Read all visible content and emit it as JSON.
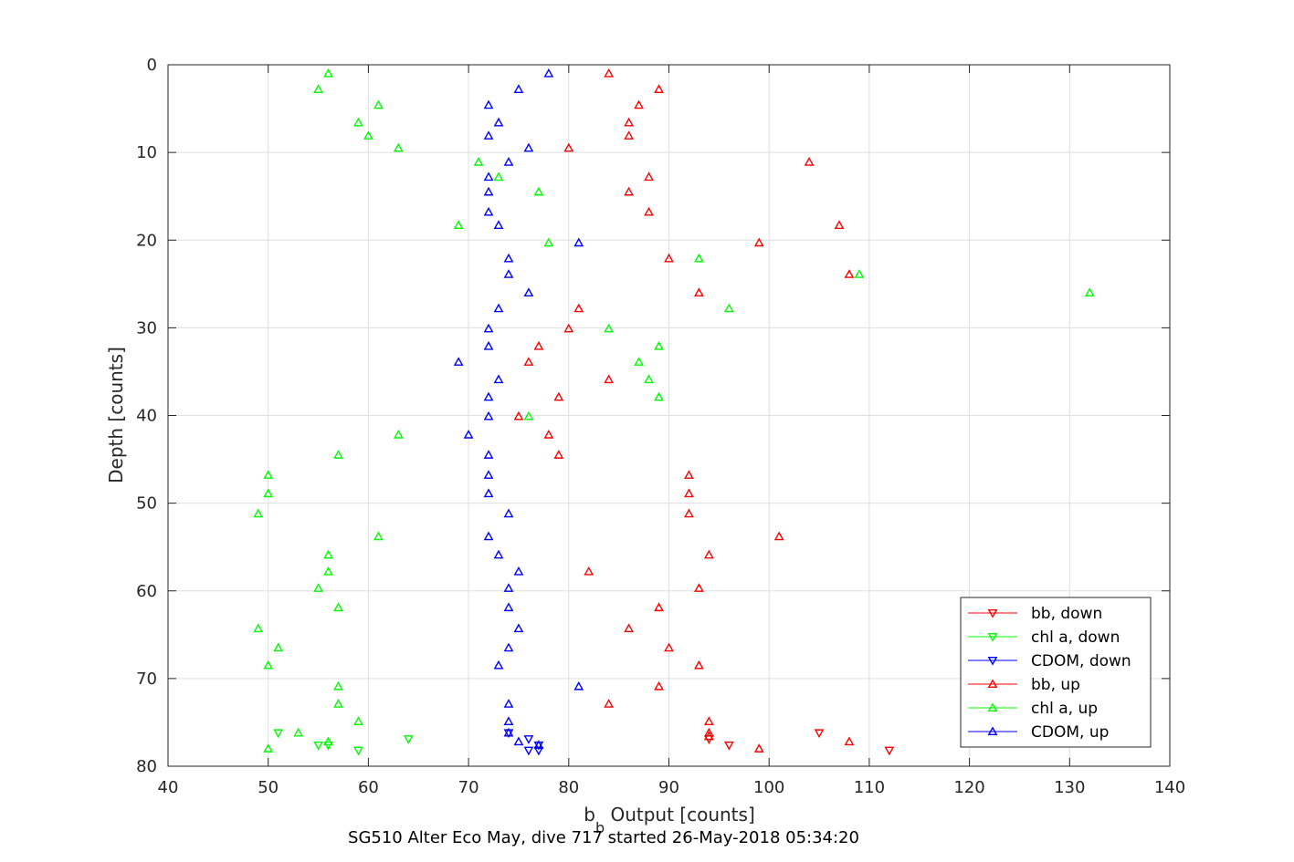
{
  "chart_data": {
    "type": "scatter",
    "xlabel_main": "b",
    "xlabel_sub": "b",
    "xlabel_rest": " Output [counts]",
    "ylabel": "Depth [counts]",
    "caption": "SG510 Alter Eco May, dive 717 started 26-May-2018 05:34:20",
    "xlim": [
      40,
      140
    ],
    "ylim": [
      0,
      80
    ],
    "y_reversed": true,
    "grid": true,
    "legend_position": "bottom-right",
    "xticks": [
      40,
      50,
      60,
      70,
      80,
      90,
      100,
      110,
      120,
      130,
      140
    ],
    "yticks": [
      0,
      10,
      20,
      30,
      40,
      50,
      60,
      70,
      80
    ],
    "series": [
      {
        "name": "bb, down",
        "color": "#ff0000",
        "marker": "triangle-down",
        "points": [
          [
            94,
            76.9
          ],
          [
            96,
            77.6
          ],
          [
            105,
            76.2
          ],
          [
            112,
            78.2
          ]
        ]
      },
      {
        "name": "chl a, down",
        "color": "#00ff00",
        "marker": "triangle-down",
        "points": [
          [
            51,
            76.2
          ],
          [
            56,
            77.6
          ],
          [
            55,
            77.6
          ],
          [
            59,
            78.2
          ],
          [
            64,
            76.9
          ]
        ]
      },
      {
        "name": "CDOM, down",
        "color": "#0000ff",
        "marker": "triangle-down",
        "points": [
          [
            74,
            76.2
          ],
          [
            76,
            76.9
          ],
          [
            76,
            78.2
          ],
          [
            77,
            77.6
          ],
          [
            77,
            78.2
          ]
        ]
      },
      {
        "name": "bb, up",
        "color": "#ff0000",
        "marker": "triangle-up",
        "points": [
          [
            84,
            1.0
          ],
          [
            89,
            2.8
          ],
          [
            87,
            4.6
          ],
          [
            86,
            6.6
          ],
          [
            86,
            8.1
          ],
          [
            80,
            9.5
          ],
          [
            104,
            11.1
          ],
          [
            88,
            12.8
          ],
          [
            86,
            14.5
          ],
          [
            88,
            16.8
          ],
          [
            107,
            18.3
          ],
          [
            99,
            20.3
          ],
          [
            90,
            22.1
          ],
          [
            108,
            23.9
          ],
          [
            93,
            26.0
          ],
          [
            81,
            27.8
          ],
          [
            80,
            30.1
          ],
          [
            77,
            32.1
          ],
          [
            76,
            33.9
          ],
          [
            84,
            35.9
          ],
          [
            79,
            37.9
          ],
          [
            75,
            40.1
          ],
          [
            78,
            42.2
          ],
          [
            79,
            44.5
          ],
          [
            92,
            46.8
          ],
          [
            92,
            48.9
          ],
          [
            92,
            51.2
          ],
          [
            101,
            53.8
          ],
          [
            94,
            55.9
          ],
          [
            82,
            57.8
          ],
          [
            93,
            59.7
          ],
          [
            89,
            61.9
          ],
          [
            86,
            64.3
          ],
          [
            90,
            66.5
          ],
          [
            93,
            68.5
          ],
          [
            89,
            70.9
          ],
          [
            84,
            72.9
          ],
          [
            94,
            74.9
          ],
          [
            94,
            76.2
          ],
          [
            94,
            76.6
          ],
          [
            108,
            77.2
          ],
          [
            99,
            78.0
          ]
        ]
      },
      {
        "name": "chl a, up",
        "color": "#00ff00",
        "marker": "triangle-up",
        "points": [
          [
            56,
            1.0
          ],
          [
            55,
            2.8
          ],
          [
            61,
            4.6
          ],
          [
            59,
            6.6
          ],
          [
            60,
            8.1
          ],
          [
            63,
            9.5
          ],
          [
            71,
            11.1
          ],
          [
            73,
            12.8
          ],
          [
            77,
            14.5
          ],
          [
            69,
            18.3
          ],
          [
            78,
            20.3
          ],
          [
            93,
            22.1
          ],
          [
            109,
            23.9
          ],
          [
            132,
            26.0
          ],
          [
            96,
            27.8
          ],
          [
            84,
            30.1
          ],
          [
            89,
            32.1
          ],
          [
            87,
            33.9
          ],
          [
            88,
            35.9
          ],
          [
            89,
            37.9
          ],
          [
            76,
            40.1
          ],
          [
            63,
            42.2
          ],
          [
            57,
            44.5
          ],
          [
            50,
            46.8
          ],
          [
            50,
            48.9
          ],
          [
            49,
            51.2
          ],
          [
            61,
            53.8
          ],
          [
            56,
            55.9
          ],
          [
            56,
            57.8
          ],
          [
            55,
            59.7
          ],
          [
            57,
            61.9
          ],
          [
            49,
            64.3
          ],
          [
            51,
            66.5
          ],
          [
            50,
            68.5
          ],
          [
            57,
            70.9
          ],
          [
            57,
            72.9
          ],
          [
            59,
            74.9
          ],
          [
            53,
            76.2
          ],
          [
            56,
            77.2
          ],
          [
            50,
            78.0
          ]
        ]
      },
      {
        "name": "CDOM, up",
        "color": "#0000ff",
        "marker": "triangle-up",
        "points": [
          [
            78,
            1.0
          ],
          [
            75,
            2.8
          ],
          [
            72,
            4.6
          ],
          [
            73,
            6.6
          ],
          [
            72,
            8.1
          ],
          [
            76,
            9.5
          ],
          [
            74,
            11.1
          ],
          [
            72,
            12.8
          ],
          [
            72,
            14.5
          ],
          [
            72,
            16.8
          ],
          [
            73,
            18.3
          ],
          [
            81,
            20.3
          ],
          [
            74,
            22.1
          ],
          [
            74,
            23.9
          ],
          [
            76,
            26.0
          ],
          [
            73,
            27.8
          ],
          [
            72,
            30.1
          ],
          [
            72,
            32.1
          ],
          [
            69,
            33.9
          ],
          [
            73,
            35.9
          ],
          [
            72,
            37.9
          ],
          [
            72,
            40.1
          ],
          [
            70,
            42.2
          ],
          [
            72,
            44.5
          ],
          [
            72,
            46.8
          ],
          [
            72,
            48.9
          ],
          [
            74,
            51.2
          ],
          [
            72,
            53.8
          ],
          [
            73,
            55.9
          ],
          [
            75,
            57.8
          ],
          [
            74,
            59.7
          ],
          [
            74,
            61.9
          ],
          [
            75,
            64.3
          ],
          [
            74,
            66.5
          ],
          [
            73,
            68.5
          ],
          [
            81,
            70.9
          ],
          [
            74,
            72.9
          ],
          [
            74,
            74.9
          ],
          [
            74,
            76.2
          ],
          [
            75,
            77.2
          ],
          [
            77,
            77.6
          ]
        ]
      }
    ]
  }
}
